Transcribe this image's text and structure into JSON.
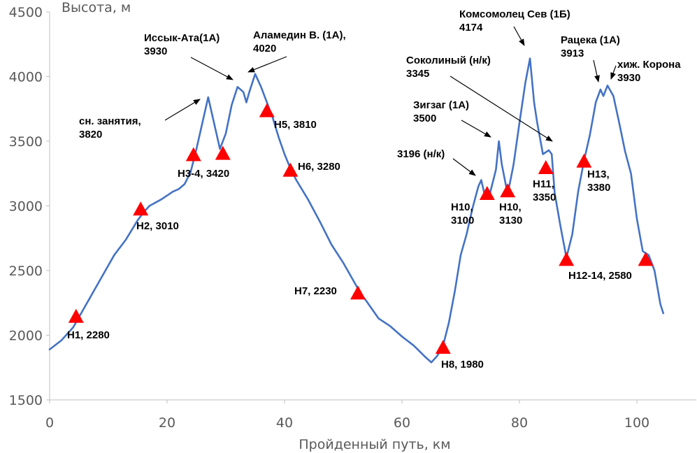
{
  "chart_data": {
    "type": "line",
    "xlabel": "Пройденный путь, км",
    "ylabel": "Высота, м",
    "xlim": [
      0,
      105
    ],
    "ylim": [
      1500,
      4500
    ],
    "x_ticks": [
      "0",
      "20",
      "40",
      "60",
      "80",
      "100"
    ],
    "x_tick_values": [
      0,
      20,
      40,
      60,
      80,
      100
    ],
    "y_ticks": [
      "1500",
      "2000",
      "2500",
      "3000",
      "3500",
      "4000",
      "4500"
    ],
    "y_tick_values": [
      1500,
      2000,
      2500,
      3000,
      3500,
      4000,
      4500
    ],
    "series": [
      {
        "name": "Высота",
        "color": "#4472c4",
        "points": [
          [
            0,
            1890
          ],
          [
            2,
            1960
          ],
          [
            4,
            2060
          ],
          [
            5,
            2140
          ],
          [
            7,
            2300
          ],
          [
            9,
            2460
          ],
          [
            11,
            2620
          ],
          [
            13,
            2740
          ],
          [
            15,
            2890
          ],
          [
            16,
            2950
          ],
          [
            17,
            3000
          ],
          [
            19,
            3050
          ],
          [
            21,
            3110
          ],
          [
            22,
            3130
          ],
          [
            23,
            3170
          ],
          [
            24,
            3260
          ],
          [
            25,
            3440
          ],
          [
            26,
            3640
          ],
          [
            27,
            3840
          ],
          [
            28,
            3640
          ],
          [
            29,
            3440
          ],
          [
            30,
            3560
          ],
          [
            31,
            3780
          ],
          [
            32,
            3920
          ],
          [
            33,
            3880
          ],
          [
            33.5,
            3800
          ],
          [
            34,
            3880
          ],
          [
            35,
            4020
          ],
          [
            36,
            3920
          ],
          [
            37,
            3800
          ],
          [
            38,
            3680
          ],
          [
            39,
            3530
          ],
          [
            40,
            3400
          ],
          [
            41,
            3290
          ],
          [
            42,
            3200
          ],
          [
            44,
            3050
          ],
          [
            46,
            2880
          ],
          [
            48,
            2700
          ],
          [
            50,
            2560
          ],
          [
            52,
            2400
          ],
          [
            53,
            2320
          ],
          [
            54,
            2260
          ],
          [
            56,
            2130
          ],
          [
            58,
            2070
          ],
          [
            60,
            1990
          ],
          [
            62,
            1920
          ],
          [
            64,
            1830
          ],
          [
            65,
            1790
          ],
          [
            66,
            1840
          ],
          [
            67,
            1920
          ],
          [
            68,
            2100
          ],
          [
            69,
            2340
          ],
          [
            70,
            2620
          ],
          [
            71,
            2780
          ],
          [
            72,
            2980
          ],
          [
            73,
            3150
          ],
          [
            73.5,
            3200
          ],
          [
            74,
            3100
          ],
          [
            75,
            3100
          ],
          [
            76,
            3280
          ],
          [
            76.5,
            3500
          ],
          [
            77,
            3320
          ],
          [
            78,
            3090
          ],
          [
            79,
            3320
          ],
          [
            80,
            3640
          ],
          [
            81,
            3950
          ],
          [
            81.8,
            4140
          ],
          [
            82.5,
            3800
          ],
          [
            83,
            3650
          ],
          [
            84,
            3400
          ],
          [
            85,
            3430
          ],
          [
            85.5,
            3400
          ],
          [
            86,
            3100
          ],
          [
            87,
            2840
          ],
          [
            88,
            2600
          ],
          [
            89,
            2780
          ],
          [
            90,
            3110
          ],
          [
            91,
            3350
          ],
          [
            92,
            3550
          ],
          [
            93,
            3800
          ],
          [
            93.8,
            3900
          ],
          [
            94.3,
            3850
          ],
          [
            95,
            3930
          ],
          [
            96,
            3850
          ],
          [
            97,
            3640
          ],
          [
            98,
            3420
          ],
          [
            99,
            3250
          ],
          [
            100,
            2900
          ],
          [
            101,
            2650
          ],
          [
            102,
            2620
          ],
          [
            103,
            2500
          ],
          [
            104,
            2240
          ],
          [
            104.5,
            2170
          ]
        ]
      }
    ],
    "markers": [
      {
        "x": 4.5,
        "y": 2150,
        "label": [
          "Н1, 2280"
        ]
      },
      {
        "x": 15.5,
        "y": 2980,
        "label": [
          "Н2, 3010"
        ]
      },
      {
        "x": 24.5,
        "y": 3400,
        "label": [
          "Н3-4, 3420"
        ]
      },
      {
        "x": 29.5,
        "y": 3410,
        "label": []
      },
      {
        "x": 37.0,
        "y": 3740,
        "label": [
          "Н5, 3810"
        ]
      },
      {
        "x": 41.0,
        "y": 3280,
        "label": [
          "Н6, 3280"
        ]
      },
      {
        "x": 52.5,
        "y": 2330,
        "label": [
          "Н7, 2230"
        ]
      },
      {
        "x": 67.0,
        "y": 1910,
        "label": [
          "Н8, 1980"
        ]
      },
      {
        "x": 74.5,
        "y": 3100,
        "label": [
          "Н10,",
          "3100"
        ]
      },
      {
        "x": 78.0,
        "y": 3120,
        "label": [
          "Н10,",
          "3130"
        ]
      },
      {
        "x": 84.5,
        "y": 3300,
        "label": [
          "Н11,",
          "3350"
        ]
      },
      {
        "x": 88.0,
        "y": 2590,
        "label": [
          "Н12-14, 2580"
        ]
      },
      {
        "x": 91.0,
        "y": 3350,
        "label": [
          "Н13,",
          "3380"
        ]
      },
      {
        "x": 101.5,
        "y": 2590,
        "label": []
      }
    ],
    "annotations": [
      {
        "lines": [
          "сн. занятия,",
          "3820"
        ]
      },
      {
        "lines": [
          "Иссык-Ата(1А)",
          "3930"
        ]
      },
      {
        "lines": [
          "Аламедин В. (1А),",
          "4020"
        ]
      },
      {
        "lines": [
          "Комсомолец Сев (1Б)",
          "4174"
        ]
      },
      {
        "lines": [
          "Соколиный (н/к)",
          "3345"
        ]
      },
      {
        "lines": [
          "Зигзаг (1А)",
          "3500"
        ]
      },
      {
        "lines": [
          "3196 (н/к)"
        ]
      },
      {
        "lines": [
          "Рацека (1А)",
          "3913"
        ]
      },
      {
        "lines": [
          "хиж. Корона",
          "3930"
        ]
      }
    ]
  }
}
